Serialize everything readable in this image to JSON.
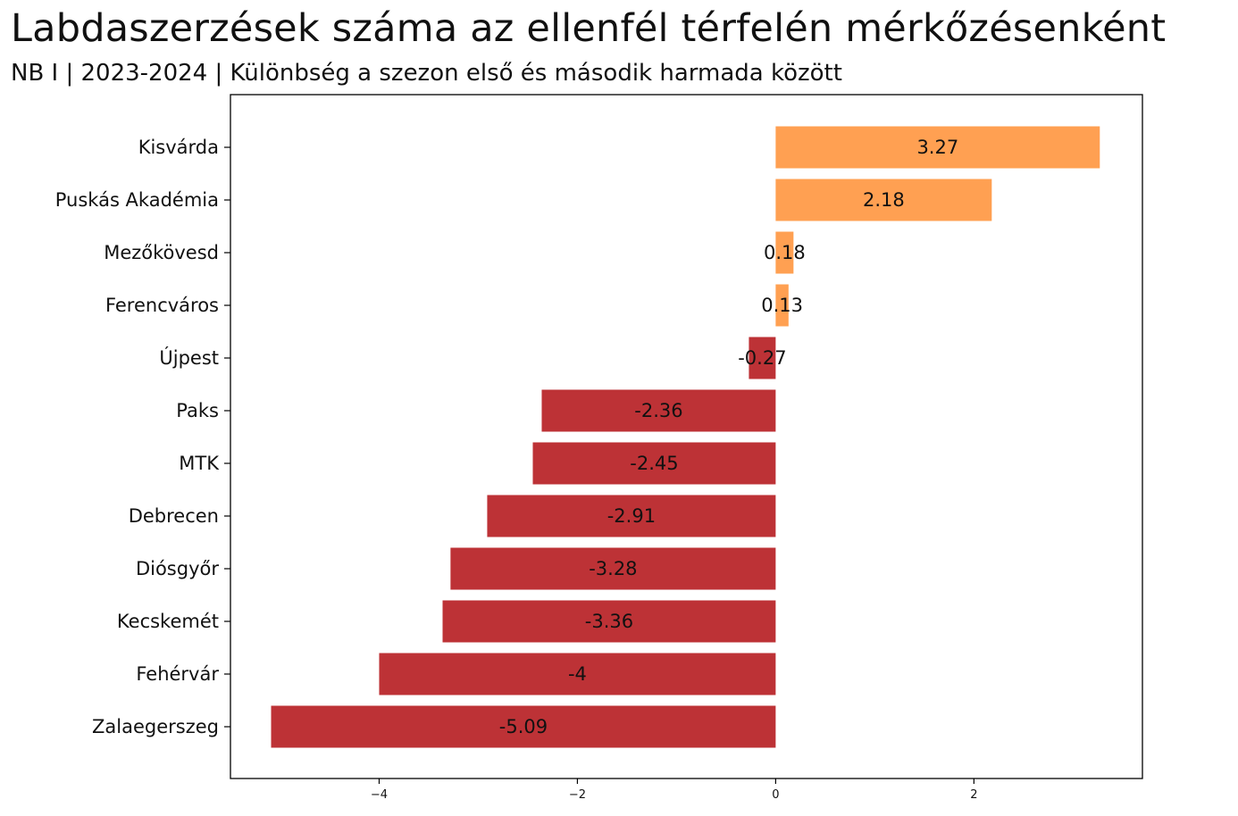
{
  "title": "Labdaszerzések száma az ellenfél térfelén mérkőzésenként",
  "subtitle": "NB I | 2023-2024 | Különbség a szezon első és második harmada között",
  "colors": {
    "positive": "#ffa052",
    "negative": "#bd3236",
    "frame": "#000000",
    "text": "#111111"
  },
  "chart_data": {
    "type": "bar",
    "orientation": "horizontal",
    "categories": [
      "Kisvárda",
      "Puskás Akadémia",
      "Mezőkövesd",
      "Ferencváros",
      "Újpest",
      "Paks",
      "MTK",
      "Debrecen",
      "Diósgyőr",
      "Kecskemét",
      "Fehérvár",
      "Zalaegerszeg"
    ],
    "values": [
      3.27,
      2.18,
      0.18,
      0.13,
      -0.27,
      -2.36,
      -2.45,
      -2.91,
      -3.28,
      -3.36,
      -4,
      -5.09
    ],
    "value_labels": [
      "3.27",
      "2.18",
      "0.18",
      "0.13",
      "-0.27",
      "-2.36",
      "-2.45",
      "-2.91",
      "-3.28",
      "-3.36",
      "-4",
      "-5.09"
    ],
    "x_ticks": [
      -4,
      -2,
      0,
      2
    ],
    "x_tick_labels": [
      "−4",
      "−2",
      "0",
      "2"
    ],
    "xlim": [
      -5.5,
      3.7
    ],
    "grid": false,
    "legend": "none"
  }
}
